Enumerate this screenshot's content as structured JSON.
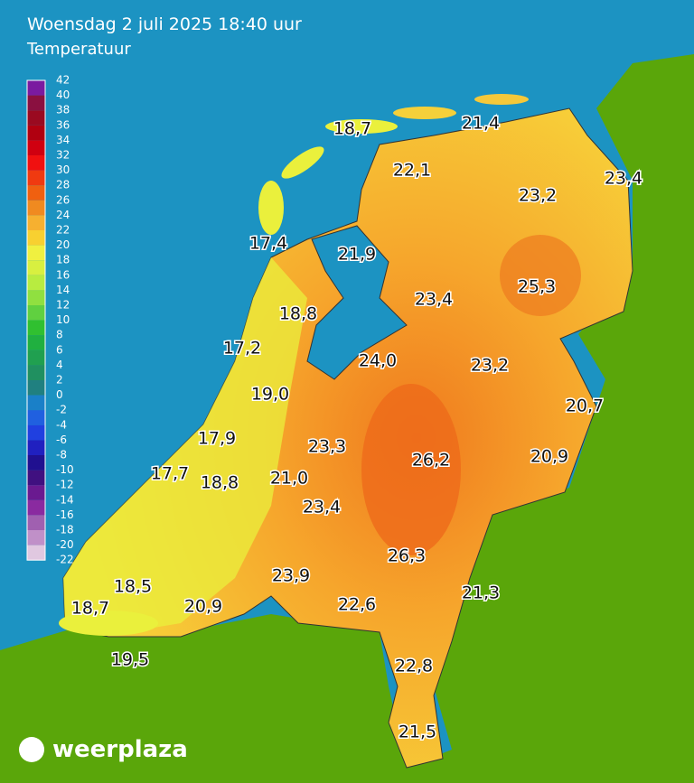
{
  "header": {
    "title": "Woensdag 2 juli 2025 18:40 uur",
    "subtitle": "Temperatuur"
  },
  "legend": {
    "ticks": [
      42,
      40,
      38,
      36,
      34,
      32,
      30,
      28,
      26,
      24,
      22,
      20,
      18,
      16,
      14,
      12,
      10,
      8,
      6,
      4,
      2,
      0,
      -2,
      -4,
      -6,
      -8,
      -10,
      -12,
      -14,
      -16,
      -18,
      -20,
      -22
    ]
  },
  "stations": [
    "18,7",
    "21,4",
    "22,1",
    "23,4",
    "23,2",
    "17,4",
    "21,9",
    "25,3",
    "23,4",
    "18,8",
    "17,2",
    "24,0",
    "23,2",
    "19,0",
    "20,7",
    "17,9",
    "23,3",
    "26,2",
    "20,9",
    "17,7",
    "18,8",
    "21,0",
    "23,4",
    "26,3",
    "23,9",
    "21,3",
    "18,5",
    "22,6",
    "20,9",
    "18,7",
    "19,5",
    "22,8",
    "21,5"
  ],
  "logo": {
    "text": "weerplaza"
  }
}
